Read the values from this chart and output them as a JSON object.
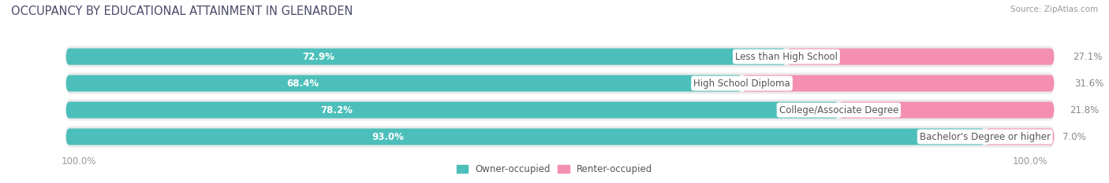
{
  "title": "OCCUPANCY BY EDUCATIONAL ATTAINMENT IN GLENARDEN",
  "source": "Source: ZipAtlas.com",
  "categories": [
    "Less than High School",
    "High School Diploma",
    "College/Associate Degree",
    "Bachelor's Degree or higher"
  ],
  "owner_values": [
    72.9,
    68.4,
    78.2,
    93.0
  ],
  "renter_values": [
    27.1,
    31.6,
    21.8,
    7.0
  ],
  "owner_color": "#4DBFBA",
  "renter_color": "#F48FB1",
  "bar_bg_color": "#EBEBEB",
  "background_color": "#FFFFFF",
  "title_fontsize": 10.5,
  "source_fontsize": 7.5,
  "value_fontsize": 8.5,
  "cat_fontsize": 8.5,
  "legend_fontsize": 8.5,
  "legend_label_owner": "Owner-occupied",
  "legend_label_renter": "Renter-occupied",
  "axis_label_left": "100.0%",
  "axis_label_right": "100.0%",
  "title_color": "#4A4A6A",
  "source_color": "#999999",
  "value_color_owner": "#FFFFFF",
  "value_color_renter": "#888888",
  "cat_color": "#555555",
  "axis_color": "#999999"
}
